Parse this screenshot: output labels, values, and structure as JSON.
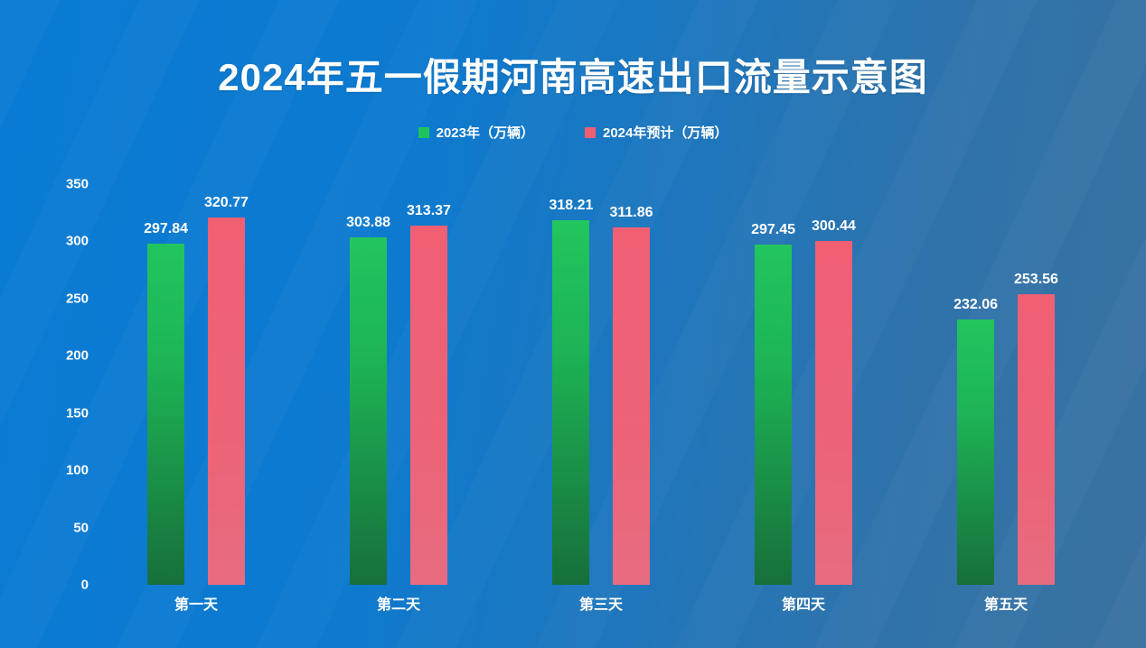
{
  "title": "2024年五一假期河南高速出口流量示意图",
  "legend": {
    "items": [
      {
        "label": "2023年（万辆）",
        "color": "#1fc35b"
      },
      {
        "label": "2024年预计（万辆）",
        "color": "#ef5f72"
      }
    ]
  },
  "chart_data": {
    "type": "bar",
    "title": "2024年五一假期河南高速出口流量示意图",
    "categories": [
      "第一天",
      "第二天",
      "第三天",
      "第四天",
      "第五天"
    ],
    "series": [
      {
        "name": "2023年（万辆）",
        "values": [
          297.84,
          303.88,
          318.21,
          297.45,
          232.06
        ],
        "color_top": "#22c55e",
        "color_bottom": "#176f3a"
      },
      {
        "name": "2024年预计（万辆）",
        "values": [
          320.77,
          313.37,
          311.86,
          300.44,
          253.56
        ],
        "color_top": "#f15f73",
        "color_bottom": "#e76c80"
      }
    ],
    "xlabel": "",
    "ylabel": "",
    "ylim": [
      0,
      350
    ],
    "yticks": [
      0,
      50,
      100,
      150,
      200,
      250,
      300,
      350
    ],
    "grid": false,
    "legend_position": "top-center",
    "value_labels": true
  },
  "colors": {
    "background_start": "#0a7bd4",
    "background_end": "#3a72a0",
    "text": "#ffffff"
  }
}
